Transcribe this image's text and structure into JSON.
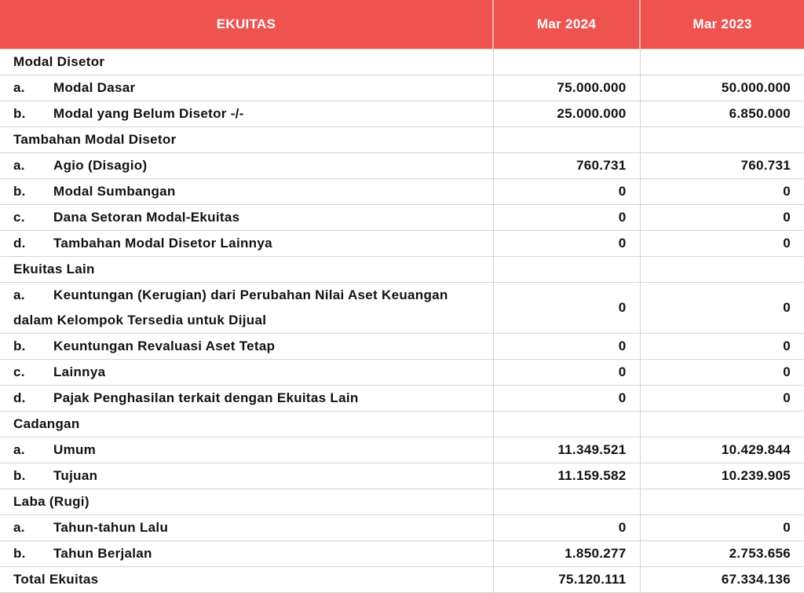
{
  "table": {
    "header": [
      "EKUITAS",
      "Mar 2024",
      "Mar 2023"
    ],
    "rows": [
      {
        "label": "Modal Disetor"
      },
      {
        "marker": "a.",
        "label": "Modal Dasar",
        "values": [
          "75.000.000",
          "50.000.000"
        ]
      },
      {
        "marker": "b.",
        "label": "Modal yang Belum Disetor -/-",
        "values": [
          "25.000.000",
          "6.850.000"
        ]
      },
      {
        "label": "Tambahan Modal Disetor"
      },
      {
        "marker": "a.",
        "label": "Agio (Disagio)",
        "values": [
          "760.731",
          "760.731"
        ]
      },
      {
        "marker": "b.",
        "label": "Modal Sumbangan",
        "values": [
          "0",
          "0"
        ]
      },
      {
        "marker": "c.",
        "label": "Dana Setoran Modal-Ekuitas",
        "values": [
          "0",
          "0"
        ]
      },
      {
        "marker": "d.",
        "label": "Tambahan Modal Disetor Lainnya",
        "values": [
          "0",
          "0"
        ]
      },
      {
        "label": "Ekuitas Lain"
      },
      {
        "marker": "a.",
        "label": "Keuntungan (Kerugian) dari Perubahan Nilai Aset Keuangan dalam Kelompok Tersedia untuk Dijual",
        "values": [
          "0",
          "0"
        ]
      },
      {
        "marker": "b.",
        "label": "Keuntungan Revaluasi Aset Tetap",
        "values": [
          "0",
          "0"
        ]
      },
      {
        "marker": "c.",
        "label": "Lainnya",
        "values": [
          "0",
          "0"
        ]
      },
      {
        "marker": "d.",
        "label": "Pajak Penghasilan terkait dengan Ekuitas Lain",
        "values": [
          "0",
          "0"
        ]
      },
      {
        "label": "Cadangan"
      },
      {
        "marker": "a.",
        "label": "Umum",
        "values": [
          "11.349.521",
          "10.429.844"
        ]
      },
      {
        "marker": "b.",
        "label": "Tujuan",
        "values": [
          "11.159.582",
          "10.239.905"
        ]
      },
      {
        "label": "Laba (Rugi)"
      },
      {
        "marker": "a.",
        "label": "Tahun-tahun Lalu",
        "values": [
          "0",
          "0"
        ]
      },
      {
        "marker": "b.",
        "label": "Tahun Berjalan",
        "values": [
          "1.850.277",
          "2.753.656"
        ]
      },
      {
        "label": "Total Ekuitas",
        "values": [
          "75.120.111",
          "67.334.136"
        ]
      }
    ]
  }
}
